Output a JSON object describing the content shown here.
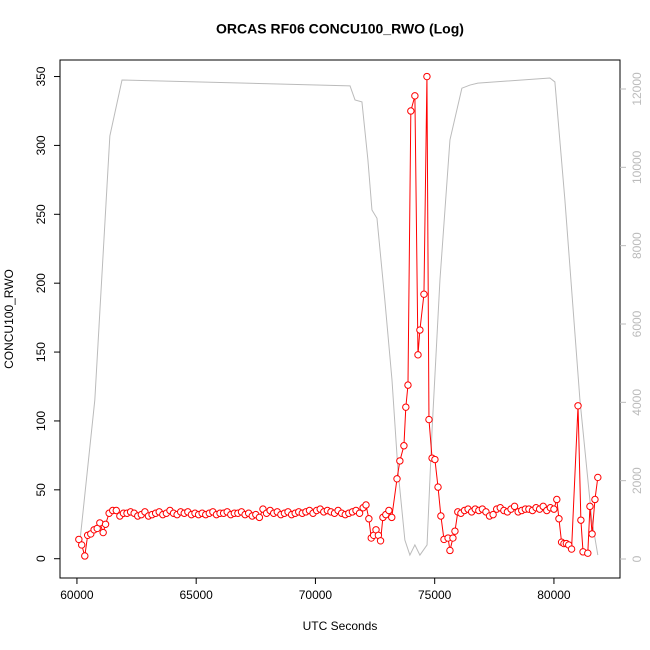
{
  "chart_data": {
    "type": "line",
    "title": "ORCAS RF06 CONCU100_RWO (Log)",
    "x_label": "UTC Seconds",
    "y_label": "CONCU100_RWO",
    "xlim": [
      59290,
      82770
    ],
    "ylim": [
      -14,
      362
    ],
    "y2lim": [
      -485,
      12740
    ],
    "xticks": [
      60000,
      65000,
      70000,
      75000,
      80000
    ],
    "yticks": [
      0,
      50,
      100,
      150,
      200,
      250,
      300,
      350
    ],
    "y2ticks": [
      0,
      2000,
      4000,
      6000,
      8000,
      10000,
      12000
    ],
    "y2_tick_color": "#bbbbbb",
    "series": [
      {
        "color": "#ff0000",
        "marker": "circle",
        "axis": "y",
        "x": [
          60080,
          60200,
          60330,
          60450,
          60580,
          60720,
          60850,
          60960,
          61100,
          61200,
          61350,
          61500,
          61650,
          61800,
          61950,
          62100,
          62250,
          62400,
          62550,
          62700,
          62850,
          63000,
          63150,
          63300,
          63450,
          63600,
          63750,
          63900,
          64050,
          64200,
          64350,
          64500,
          64650,
          64800,
          64950,
          65100,
          65250,
          65400,
          65550,
          65700,
          65850,
          66000,
          66150,
          66300,
          66450,
          66600,
          66750,
          66900,
          67050,
          67200,
          67350,
          67500,
          67650,
          67800,
          67950,
          68100,
          68250,
          68400,
          68550,
          68700,
          68850,
          69000,
          69150,
          69300,
          69450,
          69600,
          69750,
          69900,
          70050,
          70200,
          70350,
          70500,
          70650,
          70800,
          70950,
          71100,
          71250,
          71400,
          71550,
          71700,
          71850,
          72000,
          72120,
          72240,
          72340,
          72440,
          72540,
          72640,
          72730,
          72830,
          72950,
          73080,
          73200,
          73420,
          73540,
          73710,
          73790,
          73880,
          74000,
          74170,
          74300,
          74380,
          74550,
          74675,
          74760,
          74890,
          75010,
          75140,
          75260,
          75390,
          75560,
          75640,
          75765,
          75850,
          75970,
          76100,
          76250,
          76400,
          76550,
          76700,
          76850,
          77000,
          77150,
          77300,
          77450,
          77600,
          77750,
          77900,
          78050,
          78200,
          78350,
          78500,
          78650,
          78800,
          78950,
          79100,
          79250,
          79400,
          79550,
          79700,
          79850,
          80000,
          80120,
          80210,
          80320,
          80420,
          80520,
          80620,
          80740,
          81010,
          81130,
          81220,
          81420,
          81510,
          81600,
          81720,
          81840
        ],
        "values": [
          14,
          10,
          2,
          17,
          18,
          21,
          22,
          26,
          19,
          25,
          33,
          35,
          35,
          31,
          33,
          33,
          34,
          33,
          31,
          32,
          34,
          31,
          32,
          33,
          34,
          32,
          33,
          35,
          33,
          32,
          34,
          33,
          34,
          32,
          33,
          32,
          33,
          32,
          33,
          34,
          32,
          33,
          33,
          34,
          32,
          33,
          33,
          34,
          32,
          33,
          31,
          32,
          30,
          36,
          33,
          35,
          33,
          34,
          32,
          33,
          34,
          32,
          33,
          34,
          33,
          34,
          35,
          33,
          35,
          36,
          34,
          35,
          34,
          33,
          35,
          33,
          32,
          33,
          34,
          35,
          33,
          37,
          39,
          29,
          15,
          17,
          21,
          17,
          13,
          30,
          32,
          35,
          30,
          58,
          71,
          82,
          110,
          126,
          325,
          336,
          148,
          166,
          192,
          350,
          101,
          73,
          72,
          52,
          31,
          14,
          15,
          6,
          15,
          20,
          34,
          33,
          35,
          36,
          34,
          36,
          35,
          36,
          34,
          31,
          32,
          36,
          37,
          35,
          34,
          36,
          38,
          34,
          35,
          36,
          36,
          35,
          37,
          36,
          38,
          35,
          37,
          36,
          43,
          29,
          12,
          11,
          11,
          10,
          7,
          111,
          28,
          5,
          4,
          38,
          18,
          43,
          59
        ]
      },
      {
        "color": "#bbbbbb",
        "axis": "y2",
        "x": [
          60130,
          60750,
          61380,
          61890,
          71450,
          71660,
          71950,
          72200,
          72370,
          72580,
          72910,
          73210,
          73460,
          73750,
          73960,
          74170,
          74380,
          74680,
          74890,
          75220,
          75640,
          76140,
          76480,
          76810,
          79830,
          80040,
          80460,
          81090,
          81590,
          81840
        ],
        "values": [
          480,
          4060,
          10800,
          12230,
          12080,
          11720,
          11670,
          10190,
          8910,
          8700,
          6610,
          4570,
          2270,
          485,
          100,
          360,
          100,
          360,
          3290,
          7120,
          10700,
          12020,
          12100,
          12150,
          12280,
          12180,
          9165,
          4060,
          1000,
          100
        ]
      }
    ]
  }
}
